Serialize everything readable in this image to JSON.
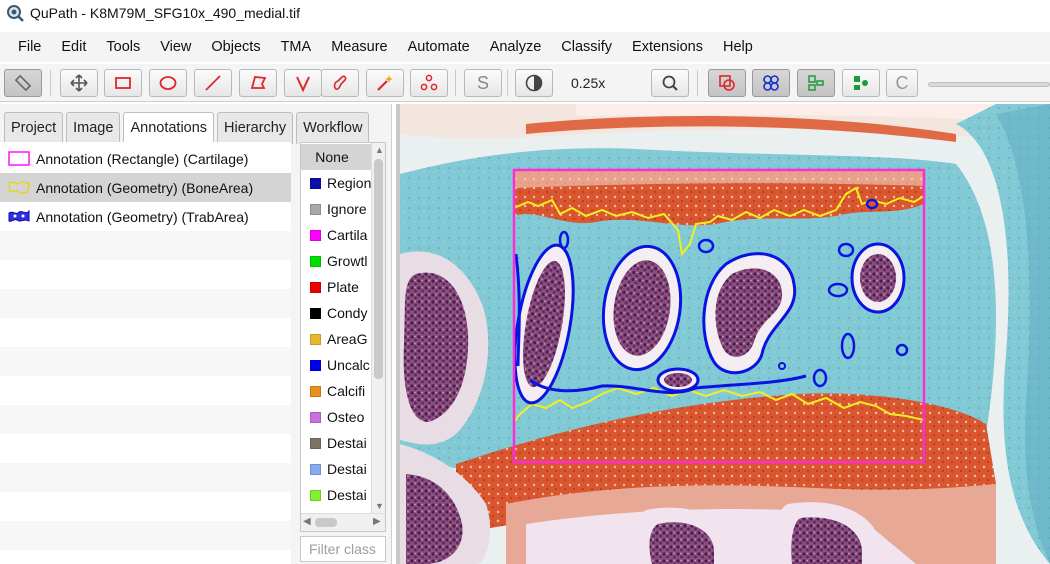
{
  "window": {
    "title": "QuPath - K8M79M_SFG10x_490_medial.tif"
  },
  "menu": [
    "File",
    "Edit",
    "Tools",
    "View",
    "Objects",
    "TMA",
    "Measure",
    "Automate",
    "Analyze",
    "Classify",
    "Extensions",
    "Help"
  ],
  "toolbar": {
    "zoom_label": "0.25x",
    "brush_icon_letter": "S",
    "counts_icon_letter": "C",
    "accent_color": "#e0262c"
  },
  "tabs": [
    "Project",
    "Image",
    "Annotations",
    "Hierarchy",
    "Workflow"
  ],
  "selected_tab": "Annotations",
  "annotations": [
    {
      "label": "Annotation (Rectangle) (Cartilage)",
      "icon": "rectangle-outline-icon",
      "color": "#ff00ff"
    },
    {
      "label": "Annotation (Geometry) (BoneArea)",
      "icon": "polygon-outline-icon",
      "color": "#f0e020"
    },
    {
      "label": "Annotation (Geometry) (TrabArea)",
      "icon": "trabecular-geometry-icon",
      "color": "#1a1ad8"
    }
  ],
  "classes": {
    "none_label": "None",
    "items": [
      {
        "label": "Region",
        "color": "#0a10a8"
      },
      {
        "label": "Ignore",
        "color": "#a8a8a8"
      },
      {
        "label": "Cartila",
        "color": "#ff00ff"
      },
      {
        "label": "Growtl",
        "color": "#00e000"
      },
      {
        "label": "Plate",
        "color": "#ee0000"
      },
      {
        "label": "Condy",
        "color": "#000000"
      },
      {
        "label": "AreaG",
        "color": "#e8b830"
      },
      {
        "label": "Uncalc",
        "color": "#0000f0"
      },
      {
        "label": "Calcifi",
        "color": "#e8901c"
      },
      {
        "label": "Osteo",
        "color": "#c870e0"
      },
      {
        "label": "Destai",
        "color": "#7a7464"
      },
      {
        "label": "Destai",
        "color": "#88aaee"
      },
      {
        "label": "Destai",
        "color": "#80f030"
      }
    ],
    "filter_placeholder": "Filter class"
  },
  "viewer": {
    "cartilage_box_color": "#ff2bd6",
    "bone_area_color": "#f4ef1e",
    "trab_area_color": "#0a14e0"
  }
}
